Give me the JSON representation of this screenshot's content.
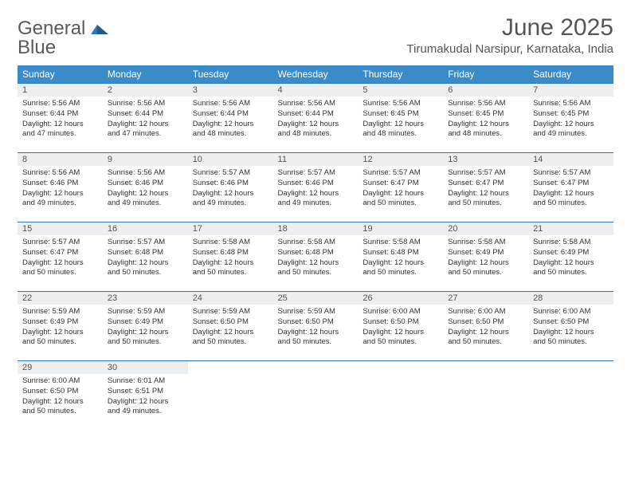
{
  "logo": {
    "word1": "General",
    "word2": "Blue"
  },
  "title": "June 2025",
  "location": "Tirumakudal Narsipur, Karnataka, India",
  "colors": {
    "header_bg": "#3b8bc9",
    "header_text": "#ffffff",
    "daynum_bg": "#eeeeee",
    "week_border": "#2a7ab8",
    "text_color": "#333333",
    "title_color": "#555555",
    "logo_gray": "#5a5a5a",
    "logo_blue": "#2a7ab8"
  },
  "typography": {
    "title_fontsize": 30,
    "location_fontsize": 15,
    "dayhead_fontsize": 12,
    "body_fontsize": 9.5
  },
  "dayNames": [
    "Sunday",
    "Monday",
    "Tuesday",
    "Wednesday",
    "Thursday",
    "Friday",
    "Saturday"
  ],
  "weeks": [
    [
      {
        "n": "1",
        "sr": "5:56 AM",
        "ss": "6:44 PM",
        "dl": "12 hours and 47 minutes."
      },
      {
        "n": "2",
        "sr": "5:56 AM",
        "ss": "6:44 PM",
        "dl": "12 hours and 47 minutes."
      },
      {
        "n": "3",
        "sr": "5:56 AM",
        "ss": "6:44 PM",
        "dl": "12 hours and 48 minutes."
      },
      {
        "n": "4",
        "sr": "5:56 AM",
        "ss": "6:44 PM",
        "dl": "12 hours and 48 minutes."
      },
      {
        "n": "5",
        "sr": "5:56 AM",
        "ss": "6:45 PM",
        "dl": "12 hours and 48 minutes."
      },
      {
        "n": "6",
        "sr": "5:56 AM",
        "ss": "6:45 PM",
        "dl": "12 hours and 48 minutes."
      },
      {
        "n": "7",
        "sr": "5:56 AM",
        "ss": "6:45 PM",
        "dl": "12 hours and 49 minutes."
      }
    ],
    [
      {
        "n": "8",
        "sr": "5:56 AM",
        "ss": "6:46 PM",
        "dl": "12 hours and 49 minutes."
      },
      {
        "n": "9",
        "sr": "5:56 AM",
        "ss": "6:46 PM",
        "dl": "12 hours and 49 minutes."
      },
      {
        "n": "10",
        "sr": "5:57 AM",
        "ss": "6:46 PM",
        "dl": "12 hours and 49 minutes."
      },
      {
        "n": "11",
        "sr": "5:57 AM",
        "ss": "6:46 PM",
        "dl": "12 hours and 49 minutes."
      },
      {
        "n": "12",
        "sr": "5:57 AM",
        "ss": "6:47 PM",
        "dl": "12 hours and 50 minutes."
      },
      {
        "n": "13",
        "sr": "5:57 AM",
        "ss": "6:47 PM",
        "dl": "12 hours and 50 minutes."
      },
      {
        "n": "14",
        "sr": "5:57 AM",
        "ss": "6:47 PM",
        "dl": "12 hours and 50 minutes."
      }
    ],
    [
      {
        "n": "15",
        "sr": "5:57 AM",
        "ss": "6:47 PM",
        "dl": "12 hours and 50 minutes."
      },
      {
        "n": "16",
        "sr": "5:57 AM",
        "ss": "6:48 PM",
        "dl": "12 hours and 50 minutes."
      },
      {
        "n": "17",
        "sr": "5:58 AM",
        "ss": "6:48 PM",
        "dl": "12 hours and 50 minutes."
      },
      {
        "n": "18",
        "sr": "5:58 AM",
        "ss": "6:48 PM",
        "dl": "12 hours and 50 minutes."
      },
      {
        "n": "19",
        "sr": "5:58 AM",
        "ss": "6:48 PM",
        "dl": "12 hours and 50 minutes."
      },
      {
        "n": "20",
        "sr": "5:58 AM",
        "ss": "6:49 PM",
        "dl": "12 hours and 50 minutes."
      },
      {
        "n": "21",
        "sr": "5:58 AM",
        "ss": "6:49 PM",
        "dl": "12 hours and 50 minutes."
      }
    ],
    [
      {
        "n": "22",
        "sr": "5:59 AM",
        "ss": "6:49 PM",
        "dl": "12 hours and 50 minutes."
      },
      {
        "n": "23",
        "sr": "5:59 AM",
        "ss": "6:49 PM",
        "dl": "12 hours and 50 minutes."
      },
      {
        "n": "24",
        "sr": "5:59 AM",
        "ss": "6:50 PM",
        "dl": "12 hours and 50 minutes."
      },
      {
        "n": "25",
        "sr": "5:59 AM",
        "ss": "6:50 PM",
        "dl": "12 hours and 50 minutes."
      },
      {
        "n": "26",
        "sr": "6:00 AM",
        "ss": "6:50 PM",
        "dl": "12 hours and 50 minutes."
      },
      {
        "n": "27",
        "sr": "6:00 AM",
        "ss": "6:50 PM",
        "dl": "12 hours and 50 minutes."
      },
      {
        "n": "28",
        "sr": "6:00 AM",
        "ss": "6:50 PM",
        "dl": "12 hours and 50 minutes."
      }
    ],
    [
      {
        "n": "29",
        "sr": "6:00 AM",
        "ss": "6:50 PM",
        "dl": "12 hours and 50 minutes."
      },
      {
        "n": "30",
        "sr": "6:01 AM",
        "ss": "6:51 PM",
        "dl": "12 hours and 49 minutes."
      },
      null,
      null,
      null,
      null,
      null
    ]
  ],
  "labels": {
    "sunrise": "Sunrise:",
    "sunset": "Sunset:",
    "daylight": "Daylight:"
  }
}
